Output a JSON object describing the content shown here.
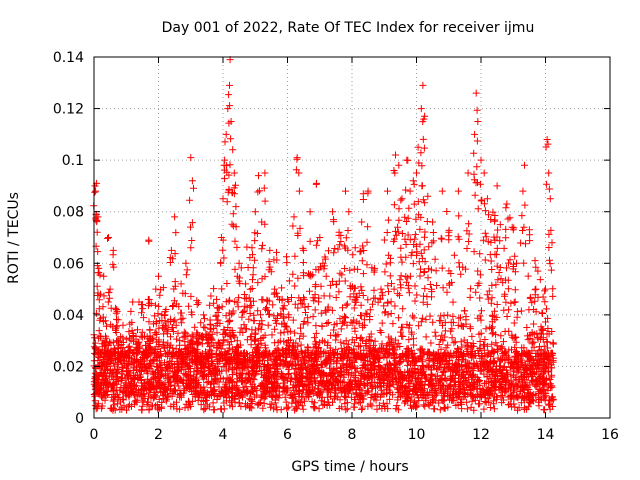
{
  "chart_data": {
    "type": "scatter",
    "title": "Day 001 of 2022, Rate Of TEC Index for receiver ijmu",
    "xlabel": "GPS time / hours",
    "ylabel": "ROTI / TECUs",
    "xlim": [
      0,
      16
    ],
    "ylim": [
      0,
      0.14
    ],
    "xticks": [
      0,
      2,
      4,
      6,
      8,
      10,
      12,
      14,
      16
    ],
    "xtick_labels": [
      "0",
      "2",
      "4",
      "6",
      "8",
      "10",
      "12",
      "14",
      "16"
    ],
    "yticks": [
      0,
      0.02,
      0.04,
      0.06,
      0.08,
      0.1,
      0.12,
      0.14
    ],
    "ytick_labels": [
      "0",
      "0.02",
      "0.04",
      "0.06",
      "0.08",
      "0.1",
      "0.12",
      "0.14"
    ],
    "grid": true,
    "marker": "+",
    "color": "#ff0000",
    "series": [
      {
        "name": "ROTI",
        "points": [
          [
            0.03,
            0.09
          ],
          [
            0.05,
            0.088
          ],
          [
            0.08,
            0.091
          ],
          [
            0.1,
            0.072
          ],
          [
            0.12,
            0.078
          ],
          [
            0.15,
            0.058
          ],
          [
            0.2,
            0.048
          ],
          [
            0.3,
            0.055
          ],
          [
            0.45,
            0.07
          ],
          [
            0.5,
            0.05
          ],
          [
            0.6,
            0.065
          ],
          [
            0.7,
            0.042
          ],
          [
            0.9,
            0.036
          ],
          [
            1.1,
            0.031
          ],
          [
            1.2,
            0.045
          ],
          [
            1.5,
            0.044
          ],
          [
            1.7,
            0.069
          ],
          [
            2.0,
            0.055
          ],
          [
            2.2,
            0.04
          ],
          [
            2.4,
            0.065
          ],
          [
            2.5,
            0.078
          ],
          [
            2.7,
            0.052
          ],
          [
            2.85,
            0.06
          ],
          [
            3.0,
            0.101
          ],
          [
            3.05,
            0.092
          ],
          [
            3.2,
            0.044
          ],
          [
            3.4,
            0.04
          ],
          [
            3.6,
            0.038
          ],
          [
            3.8,
            0.046
          ],
          [
            3.95,
            0.07
          ],
          [
            4.0,
            0.085
          ],
          [
            4.05,
            0.1
          ],
          [
            4.1,
            0.11
          ],
          [
            4.15,
            0.12
          ],
          [
            4.2,
            0.129
          ],
          [
            4.22,
            0.139
          ],
          [
            4.25,
            0.115
          ],
          [
            4.3,
            0.104
          ],
          [
            4.35,
            0.095
          ],
          [
            4.4,
            0.082
          ],
          [
            4.5,
            0.06
          ],
          [
            4.7,
            0.052
          ],
          [
            4.9,
            0.066
          ],
          [
            5.0,
            0.08
          ],
          [
            5.1,
            0.094
          ],
          [
            5.2,
            0.076
          ],
          [
            5.3,
            0.095
          ],
          [
            5.45,
            0.065
          ],
          [
            5.6,
            0.05
          ],
          [
            5.8,
            0.04
          ],
          [
            6.0,
            0.046
          ],
          [
            6.2,
            0.078
          ],
          [
            6.3,
            0.101
          ],
          [
            6.35,
            0.095
          ],
          [
            6.5,
            0.065
          ],
          [
            6.7,
            0.08
          ],
          [
            6.9,
            0.091
          ],
          [
            7.0,
            0.07
          ],
          [
            7.2,
            0.055
          ],
          [
            7.4,
            0.08
          ],
          [
            7.6,
            0.072
          ],
          [
            7.8,
            0.088
          ],
          [
            7.9,
            0.08
          ],
          [
            8.1,
            0.066
          ],
          [
            8.3,
            0.076
          ],
          [
            8.35,
            0.087
          ],
          [
            8.5,
            0.088
          ],
          [
            8.7,
            0.058
          ],
          [
            8.9,
            0.05
          ],
          [
            9.1,
            0.088
          ],
          [
            9.3,
            0.096
          ],
          [
            9.35,
            0.102
          ],
          [
            9.45,
            0.098
          ],
          [
            9.55,
            0.085
          ],
          [
            9.7,
            0.1
          ],
          [
            9.8,
            0.088
          ],
          [
            9.9,
            0.092
          ],
          [
            10.0,
            0.095
          ],
          [
            10.05,
            0.105
          ],
          [
            10.15,
            0.12
          ],
          [
            10.2,
            0.129
          ],
          [
            10.25,
            0.117
          ],
          [
            10.35,
            0.086
          ],
          [
            10.5,
            0.076
          ],
          [
            10.8,
            0.088
          ],
          [
            11.0,
            0.072
          ],
          [
            11.3,
            0.088
          ],
          [
            11.6,
            0.095
          ],
          [
            11.8,
            0.11
          ],
          [
            11.85,
            0.126
          ],
          [
            11.9,
            0.115
          ],
          [
            12.0,
            0.1
          ],
          [
            12.1,
            0.095
          ],
          [
            12.2,
            0.085
          ],
          [
            12.3,
            0.077
          ],
          [
            12.5,
            0.09
          ],
          [
            12.6,
            0.075
          ],
          [
            12.8,
            0.083
          ],
          [
            13.0,
            0.073
          ],
          [
            13.1,
            0.06
          ],
          [
            13.3,
            0.088
          ],
          [
            13.35,
            0.098
          ],
          [
            13.5,
            0.073
          ],
          [
            13.7,
            0.05
          ],
          [
            13.9,
            0.034
          ],
          [
            14.0,
            0.05
          ],
          [
            14.05,
            0.108
          ],
          [
            14.1,
            0.095
          ],
          [
            14.15,
            0.085
          ],
          [
            14.2,
            0.068
          ]
        ],
        "dense_band": {
          "x_range": [
            0.0,
            14.25
          ],
          "y_floor": 0.003,
          "y_typical_low": 0.008,
          "y_typical_high": 0.025,
          "y_sparse_high": 0.05,
          "envelope": [
            [
              0.0,
              0.03
            ],
            [
              0.5,
              0.035
            ],
            [
              1.0,
              0.03
            ],
            [
              1.5,
              0.035
            ],
            [
              2.0,
              0.038
            ],
            [
              2.5,
              0.04
            ],
            [
              3.0,
              0.035
            ],
            [
              3.5,
              0.034
            ],
            [
              4.0,
              0.045
            ],
            [
              4.5,
              0.048
            ],
            [
              5.0,
              0.052
            ],
            [
              5.5,
              0.05
            ],
            [
              6.0,
              0.048
            ],
            [
              6.5,
              0.052
            ],
            [
              7.0,
              0.048
            ],
            [
              7.5,
              0.052
            ],
            [
              8.0,
              0.055
            ],
            [
              8.5,
              0.05
            ],
            [
              9.0,
              0.058
            ],
            [
              9.5,
              0.07
            ],
            [
              10.0,
              0.065
            ],
            [
              10.5,
              0.062
            ],
            [
              11.0,
              0.06
            ],
            [
              11.5,
              0.058
            ],
            [
              12.0,
              0.07
            ],
            [
              12.5,
              0.065
            ],
            [
              13.0,
              0.06
            ],
            [
              13.5,
              0.05
            ],
            [
              14.0,
              0.04
            ],
            [
              14.25,
              0.03
            ]
          ]
        }
      }
    ]
  }
}
